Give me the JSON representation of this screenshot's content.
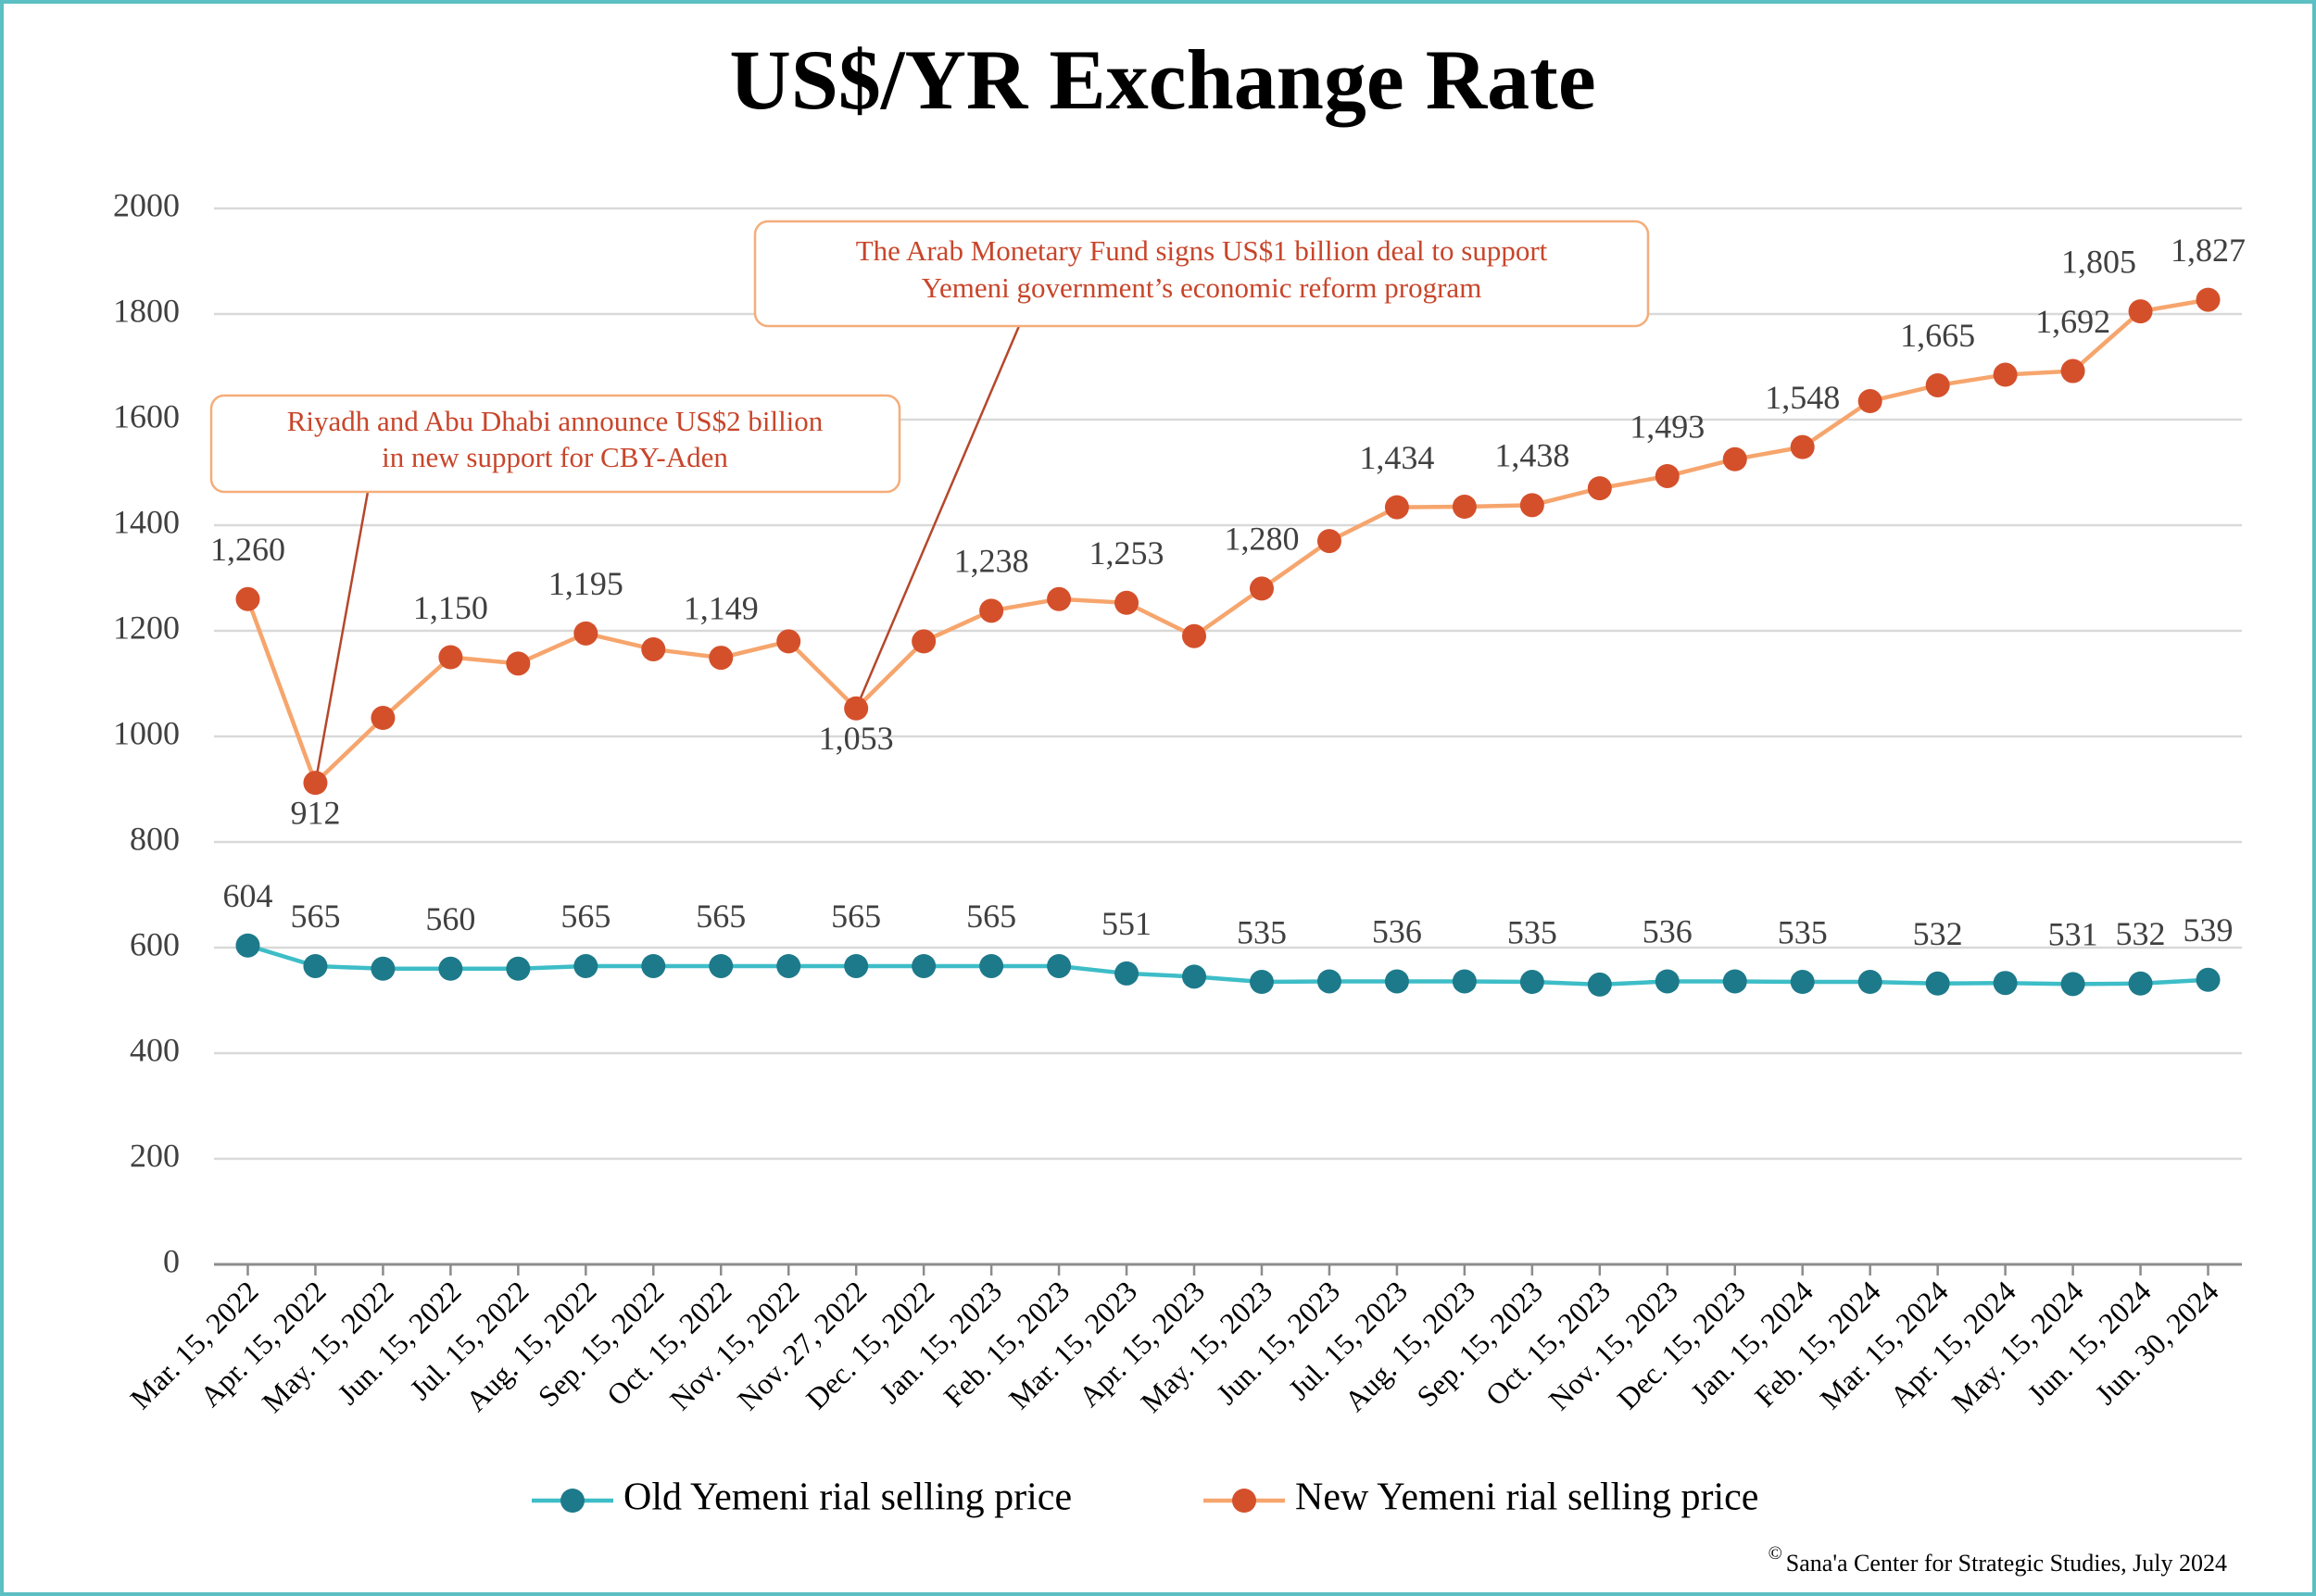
{
  "chart_data": {
    "type": "line",
    "title": "US$/YR Exchange Rate",
    "categories": [
      "Mar. 15, 2022",
      "Apr. 15, 2022",
      "May. 15, 2022",
      "Jun. 15, 2022",
      "Jul. 15, 2022",
      "Aug. 15, 2022",
      "Sep. 15, 2022",
      "Oct. 15, 2022",
      "Nov. 15, 2022",
      "Nov. 27, 2022",
      "Dec. 15, 2022",
      "Jan. 15, 2023",
      "Feb. 15, 2023",
      "Mar. 15, 2023",
      "Apr. 15, 2023",
      "May. 15, 2023",
      "Jun. 15, 2023",
      "Jul. 15, 2023",
      "Aug. 15, 2023",
      "Sep. 15, 2023",
      "Oct. 15, 2023",
      "Nov. 15, 2023",
      "Dec. 15, 2023",
      "Jan. 15, 2024",
      "Feb. 15, 2024",
      "Mar. 15, 2024",
      "Apr. 15, 2024",
      "May. 15, 2024",
      "Jun. 15, 2024",
      "Jun. 30, 2024"
    ],
    "series": [
      {
        "name": "Old Yemeni rial selling price",
        "color": "#3dbdc7",
        "marker_color": "#1d7a8a",
        "values": [
          604,
          565,
          560,
          560,
          560,
          565,
          565,
          565,
          565,
          565,
          565,
          565,
          565,
          551,
          545,
          535,
          536,
          536,
          536,
          535,
          530,
          536,
          536,
          535,
          535,
          532,
          533,
          531,
          532,
          539
        ],
        "value_labels": [
          "604",
          "565",
          null,
          "560",
          null,
          "565",
          null,
          "565",
          null,
          "565",
          null,
          "565",
          null,
          "551",
          null,
          "535",
          null,
          "536",
          null,
          "535",
          null,
          "536",
          null,
          "535",
          null,
          "532",
          null,
          "531",
          "532",
          "539"
        ]
      },
      {
        "name": "New Yemeni rial selling price",
        "color": "#f6a56d",
        "marker_color": "#d4502b",
        "values": [
          1260,
          912,
          1035,
          1150,
          1138,
          1195,
          1165,
          1149,
          1180,
          1053,
          1180,
          1238,
          1260,
          1253,
          1190,
          1280,
          1370,
          1434,
          1435,
          1438,
          1470,
          1493,
          1525,
          1548,
          1635,
          1665,
          1685,
          1692,
          1805,
          1827
        ],
        "value_labels": [
          "1,260",
          "912",
          null,
          "1,150",
          null,
          "1,195",
          null,
          "1,149",
          null,
          "1,053",
          null,
          "1,238",
          null,
          "1,253",
          null,
          "1,280",
          null,
          "1,434",
          null,
          "1,438",
          null,
          "1,493",
          null,
          "1,548",
          null,
          "1,665",
          null,
          "1,692",
          "1,805",
          "1,827"
        ]
      }
    ],
    "ylim": [
      0,
      2000
    ],
    "yticks": [
      0,
      200,
      400,
      600,
      800,
      1000,
      1200,
      1400,
      1600,
      1800,
      2000
    ],
    "grid": true,
    "legend": "bottom",
    "annotations": [
      {
        "lines": [
          "Riyadh and Abu Dhabi announce US$2 billion",
          "in new support for CBY-Aden"
        ]
      },
      {
        "lines": [
          "The Arab Monetary Fund signs US$1 billion deal to support",
          "Yemeni government’s economic reform program"
        ]
      }
    ],
    "source": "Sana'a Center for Strategic Studies, July 2024",
    "source_symbol": "©"
  }
}
